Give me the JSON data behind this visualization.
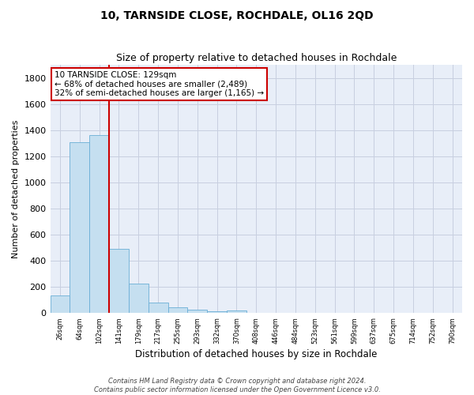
{
  "title": "10, TARNSIDE CLOSE, ROCHDALE, OL16 2QD",
  "subtitle": "Size of property relative to detached houses in Rochdale",
  "xlabel": "Distribution of detached houses by size in Rochdale",
  "ylabel": "Number of detached properties",
  "footer_line1": "Contains HM Land Registry data © Crown copyright and database right 2024.",
  "footer_line2": "Contains public sector information licensed under the Open Government Licence v3.0.",
  "bar_values": [
    135,
    1305,
    1360,
    490,
    225,
    80,
    45,
    25,
    15,
    20,
    0,
    0,
    0,
    0,
    0,
    0,
    0,
    0,
    0,
    0,
    0
  ],
  "bar_labels": [
    "26sqm",
    "64sqm",
    "102sqm",
    "141sqm",
    "179sqm",
    "217sqm",
    "255sqm",
    "293sqm",
    "332sqm",
    "370sqm",
    "408sqm",
    "446sqm",
    "484sqm",
    "523sqm",
    "561sqm",
    "599sqm",
    "637sqm",
    "675sqm",
    "714sqm",
    "752sqm",
    "790sqm"
  ],
  "bar_color": "#c5dff0",
  "bar_edge_color": "#6aaed6",
  "grid_color": "#c8cfe0",
  "bg_color": "#e8eef8",
  "vline_x_idx": 3,
  "vline_color": "#cc0000",
  "annotation_text": "10 TARNSIDE CLOSE: 129sqm\n← 68% of detached houses are smaller (2,489)\n32% of semi-detached houses are larger (1,165) →",
  "annotation_box_color": "#cc0000",
  "ylim": [
    0,
    1900
  ],
  "yticks": [
    0,
    200,
    400,
    600,
    800,
    1000,
    1200,
    1400,
    1600,
    1800
  ],
  "title_fontsize": 10,
  "subtitle_fontsize": 9,
  "ylabel_fontsize": 8,
  "xlabel_fontsize": 8.5,
  "ytick_fontsize": 8,
  "xtick_fontsize": 6,
  "footer_fontsize": 6,
  "annot_fontsize": 7.5
}
